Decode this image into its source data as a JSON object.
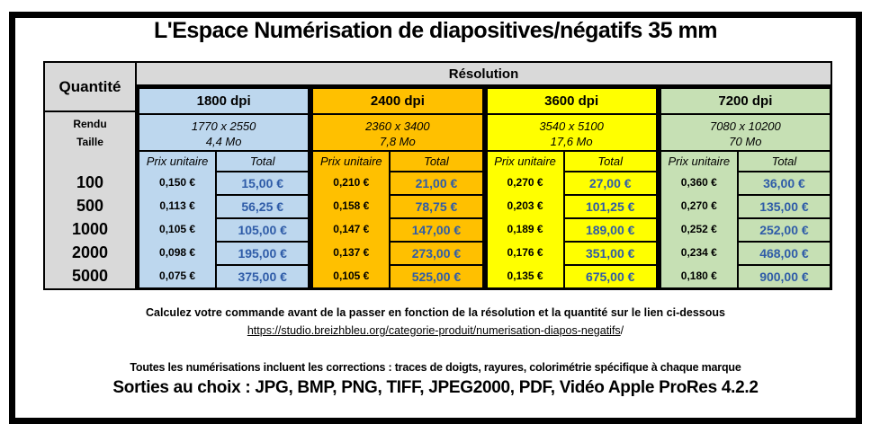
{
  "title": "L'Espace Numérisation de diapositives/négatifs 35 mm",
  "table": {
    "quantity_header": "Quantité",
    "resolution_header": "Résolution",
    "rendu_label": "Rendu",
    "taille_label": "Taille",
    "quantities": [
      "100",
      "500",
      "1000",
      "2000",
      "5000"
    ],
    "columns": [
      {
        "dpi": "1800 dpi",
        "rendu": "1770 x 2550",
        "taille": "4,4 Mo",
        "unit_header": "Prix unitaire",
        "total_header": "Total",
        "bg_color": "#BDD7EE",
        "rows": [
          {
            "unit": "0,150 €",
            "total": "15,00 €"
          },
          {
            "unit": "0,113 €",
            "total": "56,25 €"
          },
          {
            "unit": "0,105 €",
            "total": "105,00 €"
          },
          {
            "unit": "0,098 €",
            "total": "195,00 €"
          },
          {
            "unit": "0,075 €",
            "total": "375,00 €"
          }
        ]
      },
      {
        "dpi": "2400 dpi",
        "rendu": "2360 x 3400",
        "taille": "7,8 Mo",
        "unit_header": "Prix unitaire",
        "total_header": "Total",
        "bg_color": "#FFC000",
        "rows": [
          {
            "unit": "0,210 €",
            "total": "21,00 €"
          },
          {
            "unit": "0,158 €",
            "total": "78,75 €"
          },
          {
            "unit": "0,147 €",
            "total": "147,00 €"
          },
          {
            "unit": "0,137 €",
            "total": "273,00 €"
          },
          {
            "unit": "0,105 €",
            "total": "525,00 €"
          }
        ]
      },
      {
        "dpi": "3600 dpi",
        "rendu": "3540 x 5100",
        "taille": "17,6 Mo",
        "unit_header": "Prix unitaire",
        "total_header": "Total",
        "bg_color": "#FFFF00",
        "rows": [
          {
            "unit": "0,270 €",
            "total": "27,00 €"
          },
          {
            "unit": "0,203 €",
            "total": "101,25 €"
          },
          {
            "unit": "0,189 €",
            "total": "189,00 €"
          },
          {
            "unit": "0,176 €",
            "total": "351,00 €"
          },
          {
            "unit": "0,135 €",
            "total": "675,00 €"
          }
        ]
      },
      {
        "dpi": "7200 dpi",
        "rendu": "7080 x 10200",
        "taille": "70 Mo",
        "unit_header": "Prix unitaire",
        "total_header": "Total",
        "bg_color": "#C6E0B4",
        "rows": [
          {
            "unit": "0,360 €",
            "total": "36,00 €"
          },
          {
            "unit": "0,270 €",
            "total": "135,00 €"
          },
          {
            "unit": "0,252 €",
            "total": "252,00 €"
          },
          {
            "unit": "0,234 €",
            "total": "468,00 €"
          },
          {
            "unit": "0,180 €",
            "total": "900,00 €"
          }
        ]
      }
    ]
  },
  "footer": {
    "calc_line": "Calculez votre commande avant de la passer en fonction de la résolution et la quantité sur le lien ci-dessous",
    "link": "https://studio.breizhbleu.org/categorie-produit/numerisation-diapos-negatifs",
    "link_suffix": "/",
    "corrections_line": "Toutes les numérisations incluent les corrections : traces de doigts, rayures, colorimétrie spécifique à chaque marque",
    "outputs_line": "Sorties au choix : JPG, BMP, PNG, TIFF, JPEG2000, PDF, Vidéo Apple ProRes 4.2.2"
  },
  "colors": {
    "header_gray": "#D9D9D9",
    "col_1800": "#BDD7EE",
    "col_2400": "#FFC000",
    "col_3600": "#FFFF00",
    "col_7200": "#C6E0B4",
    "total_text_blue": "#2F5CA8",
    "border_black": "#000000"
  }
}
